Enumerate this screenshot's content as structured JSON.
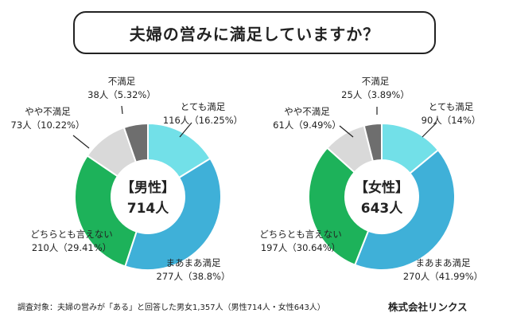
{
  "title": "夫婦の営みに満足していますか？",
  "colors": {
    "totemo": "#72e0e8",
    "maamaa": "#3fb0d8",
    "dochira": "#1db25a",
    "yaya": "#d9d9d9",
    "fuman": "#6e6e6e"
  },
  "chart_data": [
    {
      "type": "pie",
      "donut": true,
      "center_label": "【男性】",
      "center_value": "714人",
      "slices": [
        {
          "key": "totemo",
          "name": "とても満足",
          "value_text": "116人（16.25%）",
          "count": 116,
          "percent": 16.25
        },
        {
          "key": "maamaa",
          "name": "まあまあ満足",
          "value_text": "277人（38.8%）",
          "count": 277,
          "percent": 38.8
        },
        {
          "key": "dochira",
          "name": "どちらとも言えない",
          "value_text": "210人（29.41%）",
          "count": 210,
          "percent": 29.41
        },
        {
          "key": "yaya",
          "name": "やや不満足",
          "value_text": "73人（10.22%）",
          "count": 73,
          "percent": 10.22
        },
        {
          "key": "fuman",
          "name": "不満足",
          "value_text": "38人（5.32%）",
          "count": 38,
          "percent": 5.32
        }
      ]
    },
    {
      "type": "pie",
      "donut": true,
      "center_label": "【女性】",
      "center_value": "643人",
      "slices": [
        {
          "key": "totemo",
          "name": "とても満足",
          "value_text": "90人（14%）",
          "count": 90,
          "percent": 14
        },
        {
          "key": "maamaa",
          "name": "まあまあ満足",
          "value_text": "270人（41.99%）",
          "count": 270,
          "percent": 41.99
        },
        {
          "key": "dochira",
          "name": "どちらとも言えない",
          "value_text": "197人（30.64%）",
          "count": 197,
          "percent": 30.64
        },
        {
          "key": "yaya",
          "name": "やや不満足",
          "value_text": "61人（9.49%）",
          "count": 61,
          "percent": 9.49
        },
        {
          "key": "fuman",
          "name": "不満足",
          "value_text": "25人（3.89%）",
          "count": 25,
          "percent": 3.89
        }
      ]
    }
  ],
  "footer": {
    "note": "調査対象：夫婦の営みが「ある」と回答した男女1,357人（男性714人・女性643人）",
    "company": "株式会社リンクス"
  }
}
